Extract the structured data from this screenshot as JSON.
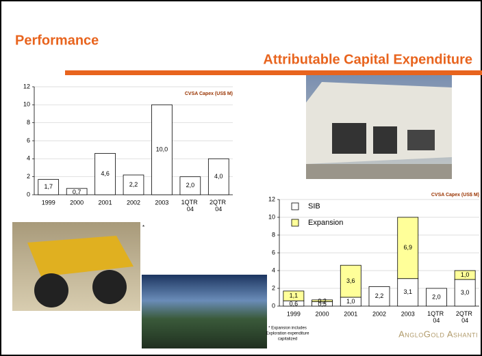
{
  "header": {
    "title": "Performance",
    "subtitle": "Attributable Capital Expenditure"
  },
  "notes": {
    "asterisk": "*",
    "footnote": [
      "* Expansion includes",
      "Exploration expenditure",
      "capitalized"
    ],
    "logo": "AngloGold Ashanti"
  },
  "chart_data": [
    {
      "type": "bar",
      "title": "CVSA Capex (US$ M)",
      "categories": [
        "1999",
        "2000",
        "2001",
        "2002",
        "2003",
        "1QTR 04",
        "2QTR 04"
      ],
      "values": [
        1.7,
        0.7,
        4.6,
        2.2,
        10.0,
        2.0,
        4.0
      ],
      "value_labels": [
        "1,7",
        "0,7",
        "4,6",
        "2,2",
        "10,0",
        "2,0",
        "4,0"
      ],
      "color": "#ffffff",
      "ylim": [
        0,
        12
      ],
      "yticks": [
        0,
        2,
        4,
        6,
        8,
        10,
        12
      ],
      "grid": true
    },
    {
      "type": "stacked_bar",
      "title": "CVSA Capex (US$ M)",
      "categories": [
        "1999",
        "2000",
        "2001",
        "2002",
        "2003",
        "1QTR 04",
        "2QTR 04"
      ],
      "series": [
        {
          "name": "SIB",
          "color": "#ffffff",
          "values": [
            0.6,
            0.5,
            1.0,
            2.2,
            3.1,
            2.0,
            3.0
          ],
          "value_labels": [
            "0,6",
            "0,5",
            "1,0",
            "2,2",
            "3,1",
            "2,0",
            "3,0"
          ]
        },
        {
          "name": "Expansion",
          "color": "#ffff99",
          "values": [
            1.1,
            0.2,
            3.6,
            null,
            6.9,
            null,
            1.0
          ],
          "value_labels": [
            "1,1",
            "0,2",
            "3,6",
            null,
            "6,9",
            null,
            "1,0"
          ]
        }
      ],
      "ylim": [
        0,
        12
      ],
      "yticks": [
        0,
        2,
        4,
        6,
        8,
        10,
        12
      ],
      "grid": true,
      "legend": "top-left"
    }
  ]
}
